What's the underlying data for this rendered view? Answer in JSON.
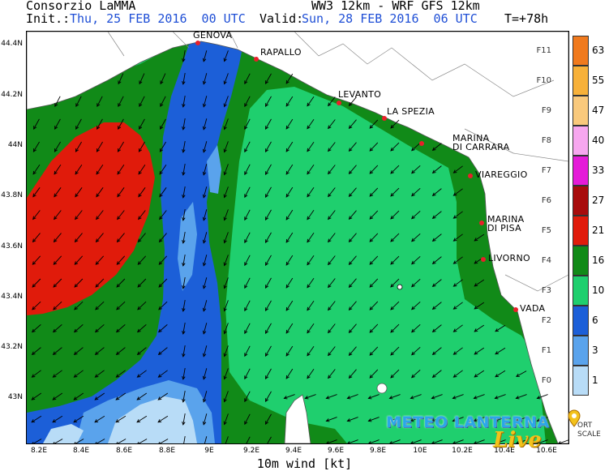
{
  "header": {
    "source": "Consorzio LaMMA",
    "model": "WW3 12km - WRF GFS 12km",
    "init_label": "Init.:",
    "init_value": "Thu, 25 FEB 2016  00 UTC",
    "valid_label": "Valid:",
    "valid_value": "Sun, 28 FEB 2016  06 UTC",
    "lead": "T=+78h"
  },
  "map": {
    "variable_label": "10m wind [kt]",
    "lat_ticks": [
      "44.4N",
      "44.2N",
      "44N",
      "43.8N",
      "43.6N",
      "43.4N",
      "43.2N",
      "43N"
    ],
    "lon_ticks": [
      "8.2E",
      "8.4E",
      "8.6E",
      "8.8E",
      "9E",
      "9.2E",
      "9.4E",
      "9.6E",
      "9.8E",
      "10E",
      "10.2E",
      "10.4E",
      "10.6E"
    ],
    "cities": [
      "GENOVA",
      "RAPALLO",
      "LEVANTO",
      "LA SPEZIA",
      "MARINA DI CARRARA",
      "VIAREGGIO",
      "MARINA DI PISA",
      "LIVORNO",
      "VADA"
    ],
    "city_lines": {
      "carrara_1": "MARINA",
      "carrara_2": "DI CARRARA",
      "pisa_1": "MARINA",
      "pisa_2": "DI PISA"
    },
    "city_color": "#e8202a"
  },
  "legend": {
    "classes": [
      {
        "force": "F11",
        "value": "63",
        "color": "#f07a1e"
      },
      {
        "force": "F10",
        "value": "55",
        "color": "#f7b13a"
      },
      {
        "force": "F9",
        "value": "47",
        "color": "#f9c97c"
      },
      {
        "force": "F8",
        "value": "40",
        "color": "#f7a7ef"
      },
      {
        "force": "F7",
        "value": "33",
        "color": "#e51bd8"
      },
      {
        "force": "F6",
        "value": "27",
        "color": "#a80c0c"
      },
      {
        "force": "F5",
        "value": "21",
        "color": "#e01b0b"
      },
      {
        "force": "F4",
        "value": "16",
        "color": "#118a18"
      },
      {
        "force": "F3",
        "value": "10",
        "color": "#1fcf6e"
      },
      {
        "force": "F2",
        "value": "6",
        "color": "#1c5fd8"
      },
      {
        "force": "F1",
        "value": "3",
        "color": "#5aa3ec"
      },
      {
        "force": "F0",
        "value": "1",
        "color": "#b8dcf7"
      }
    ],
    "scale_text_1": "ORT",
    "scale_text_2": "SCALE"
  },
  "brand": {
    "name": "METEO LANTERNA",
    "sub": "Live"
  }
}
